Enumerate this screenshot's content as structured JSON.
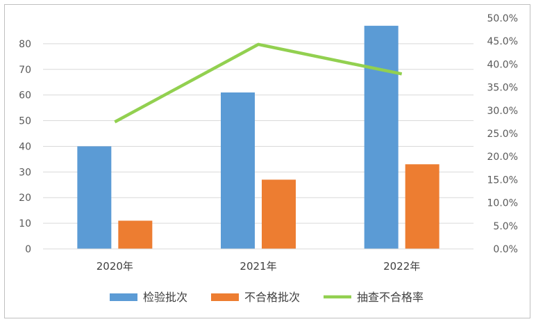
{
  "chart_data": {
    "type": "bar",
    "categories": [
      "2020年",
      "2021年",
      "2022年"
    ],
    "series": [
      {
        "name": "检验批次",
        "type": "bar",
        "axis": "left",
        "color": "#5b9bd5",
        "values": [
          40,
          61,
          87
        ]
      },
      {
        "name": "不合格批次",
        "type": "bar",
        "axis": "left",
        "color": "#ed7d31",
        "values": [
          11,
          27,
          33
        ]
      },
      {
        "name": "抽查不合格率",
        "type": "line",
        "axis": "right",
        "color": "#92d050",
        "values": [
          0.275,
          0.443,
          0.379
        ]
      }
    ],
    "y_left": {
      "ylim": [
        0,
        90
      ],
      "ticks": [
        "0",
        "10",
        "20",
        "30",
        "40",
        "50",
        "60",
        "70",
        "80"
      ]
    },
    "y_right": {
      "ylim": [
        0,
        0.5
      ],
      "ticks": [
        "0.0%",
        "5.0%",
        "10.0%",
        "15.0%",
        "20.0%",
        "25.0%",
        "30.0%",
        "35.0%",
        "40.0%",
        "45.0%",
        "50.0%"
      ]
    },
    "grid": true,
    "legend": "bottom"
  }
}
